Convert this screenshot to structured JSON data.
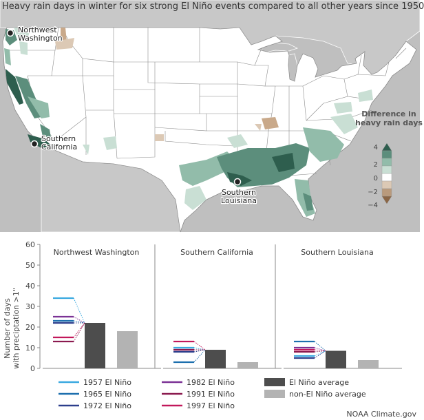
{
  "title": "Heavy rain days in winter for six strong El Niño events compared to all other years since 1950",
  "map": {
    "locations": [
      {
        "name": "Northwest Washington",
        "label_lines": [
          "Northwest",
          "Washington"
        ]
      },
      {
        "name": "Southern California",
        "label_lines": [
          "Southern",
          "California"
        ]
      },
      {
        "name": "Southern Louisiana",
        "label_lines": [
          "Southern",
          "Louisiana"
        ]
      }
    ],
    "legend": {
      "title_lines": [
        "Difference in",
        "heavy rain days"
      ],
      "ticks": [
        "4",
        "2",
        "0",
        "−2",
        "−4"
      ],
      "colors": [
        "#2e5e4e",
        "#5c8e7c",
        "#92bcaa",
        "#c9dfd4",
        "#ffffff",
        "#dcc9b5",
        "#b99a7c",
        "#8a6646"
      ]
    },
    "colors": {
      "land": "#ffffff",
      "outside": "#bfbfbf",
      "wet": "#5d9b84",
      "dry": "#c9a98a"
    }
  },
  "chart_data": [
    {
      "type": "bar",
      "title": "Northwest Washington",
      "ylabel_lines": [
        "Number of days",
        "with preciptation >1\""
      ],
      "ylim": [
        0,
        60
      ],
      "yticks": [
        0,
        10,
        20,
        30,
        40,
        50,
        60
      ],
      "events": [
        {
          "name": "1957 El Niño",
          "value": 34,
          "color": "#3aa9e0"
        },
        {
          "name": "1965 El Niño",
          "value": 23,
          "color": "#1d6fae"
        },
        {
          "name": "1972 El Niño",
          "value": 22,
          "color": "#2c3e8c"
        },
        {
          "name": "1982 El Niño",
          "value": 25,
          "color": "#7b3295"
        },
        {
          "name": "1991 El Niño",
          "value": 13,
          "color": "#8b1a4f"
        },
        {
          "name": "1997 El Niño",
          "value": 15,
          "color": "#c2185b"
        }
      ],
      "series": [
        {
          "name": "El Niño average",
          "value": 22,
          "color": "#4d4d4d"
        },
        {
          "name": "non-El Niño average",
          "value": 18,
          "color": "#b3b3b3"
        }
      ]
    },
    {
      "type": "bar",
      "title": "Southern California",
      "ylim": [
        0,
        60
      ],
      "events": [
        {
          "name": "1957 El Niño",
          "value": 10,
          "color": "#3aa9e0"
        },
        {
          "name": "1965 El Niño",
          "value": 3,
          "color": "#1d6fae"
        },
        {
          "name": "1972 El Niño",
          "value": 8,
          "color": "#2c3e8c"
        },
        {
          "name": "1982 El Niño",
          "value": 9,
          "color": "#7b3295"
        },
        {
          "name": "1991 El Niño",
          "value": 9,
          "color": "#8b1a4f"
        },
        {
          "name": "1997 El Niño",
          "value": 13,
          "color": "#c2185b"
        }
      ],
      "series": [
        {
          "name": "El Niño average",
          "value": 9,
          "color": "#4d4d4d"
        },
        {
          "name": "non-El Niño average",
          "value": 3,
          "color": "#b3b3b3"
        }
      ]
    },
    {
      "type": "bar",
      "title": "Southern Louisiana",
      "ylim": [
        0,
        60
      ],
      "events": [
        {
          "name": "1957 El Niño",
          "value": 6,
          "color": "#3aa9e0"
        },
        {
          "name": "1965 El Niño",
          "value": 13,
          "color": "#1d6fae"
        },
        {
          "name": "1972 El Niño",
          "value": 5,
          "color": "#2c3e8c"
        },
        {
          "name": "1982 El Niño",
          "value": 10,
          "color": "#7b3295"
        },
        {
          "name": "1991 El Niño",
          "value": 8,
          "color": "#8b1a4f"
        },
        {
          "name": "1997 El Niño",
          "value": 9,
          "color": "#c2185b"
        }
      ],
      "series": [
        {
          "name": "El Niño average",
          "value": 8.5,
          "color": "#4d4d4d"
        },
        {
          "name": "non-El Niño average",
          "value": 4,
          "color": "#b3b3b3"
        }
      ]
    }
  ],
  "legend": {
    "events": [
      "1957 El Niño",
      "1965 El Niño",
      "1972 El Niño",
      "1982 El Niño",
      "1991 El Niño",
      "1997 El Niño"
    ],
    "averages": [
      "El Niño average",
      "non-El Niño average"
    ]
  },
  "credit": "NOAA Climate.gov"
}
